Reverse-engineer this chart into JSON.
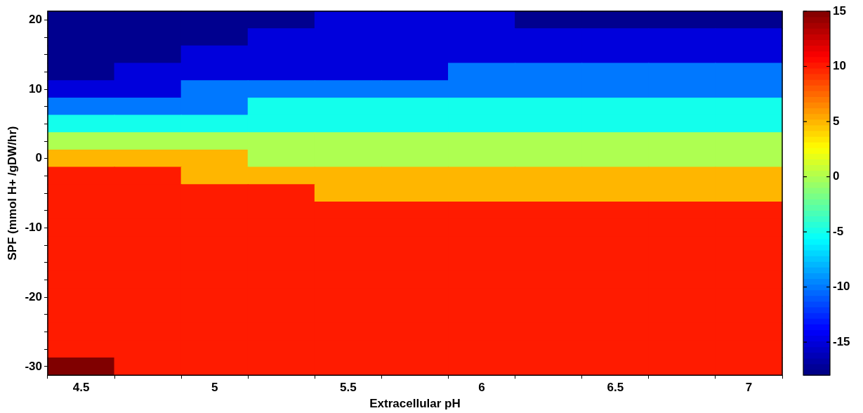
{
  "chart_data": {
    "type": "heatmap",
    "xlabel": "Extracellular pH",
    "ylabel": "SPF (mmol H+ /gDW/hr)",
    "categories": [
      "4.5",
      null,
      "5",
      null,
      "5.5",
      null,
      "6",
      null,
      "6.5",
      null,
      "7"
    ],
    "y_categories": [
      "20",
      null,
      null,
      null,
      "10",
      null,
      null,
      null,
      "0",
      null,
      null,
      null,
      "-10",
      null,
      null,
      null,
      "-20",
      null,
      null,
      null,
      "-30"
    ],
    "cells": [
      [
        -17.5,
        -17.5,
        -17.5,
        -17.5,
        -15,
        -15,
        -15,
        -17.5,
        -17.5,
        -17.5,
        -17.5
      ],
      [
        -17.5,
        -17.5,
        -17.5,
        -15,
        -15,
        -15,
        -15,
        -15,
        -15,
        -15,
        -15
      ],
      [
        -17.5,
        -17.5,
        -15,
        -15,
        -15,
        -15,
        -15,
        -15,
        -15,
        -15,
        -15
      ],
      [
        -17.5,
        -15,
        -15,
        -15,
        -15,
        -15,
        -10,
        -10,
        -10,
        -10,
        -10
      ],
      [
        -15,
        -15,
        -10,
        -10,
        -10,
        -10,
        -10,
        -10,
        -10,
        -10,
        -10
      ],
      [
        -10,
        -10,
        -10,
        -5,
        -5,
        -5,
        -5,
        -5,
        -5,
        -5,
        -5
      ],
      [
        -5,
        -5,
        -5,
        -5,
        -5,
        -5,
        -5,
        -5,
        -5,
        -5,
        -5
      ],
      [
        0,
        0,
        0,
        0,
        0,
        0,
        0,
        0,
        0,
        0,
        0
      ],
      [
        5,
        5,
        5,
        0,
        0,
        0,
        0,
        0,
        0,
        0,
        0
      ],
      [
        10,
        10,
        5,
        5,
        5,
        5,
        5,
        5,
        5,
        5,
        5
      ],
      [
        10,
        10,
        10,
        10,
        5,
        5,
        5,
        5,
        5,
        5,
        5
      ],
      [
        10,
        10,
        10,
        10,
        10,
        10,
        10,
        10,
        10,
        10,
        10
      ],
      [
        10,
        10,
        10,
        10,
        10,
        10,
        10,
        10,
        10,
        10,
        10
      ],
      [
        10,
        10,
        10,
        10,
        10,
        10,
        10,
        10,
        10,
        10,
        10
      ],
      [
        10,
        10,
        10,
        10,
        10,
        10,
        10,
        10,
        10,
        10,
        10
      ],
      [
        10,
        10,
        10,
        10,
        10,
        10,
        10,
        10,
        10,
        10,
        10
      ],
      [
        10,
        10,
        10,
        10,
        10,
        10,
        10,
        10,
        10,
        10,
        10
      ],
      [
        10,
        10,
        10,
        10,
        10,
        10,
        10,
        10,
        10,
        10,
        10
      ],
      [
        10,
        10,
        10,
        10,
        10,
        10,
        10,
        10,
        10,
        10,
        10
      ],
      [
        10,
        10,
        10,
        10,
        10,
        10,
        10,
        10,
        10,
        10,
        10
      ],
      [
        15,
        10,
        10,
        10,
        10,
        10,
        10,
        10,
        10,
        10,
        10
      ]
    ],
    "clim": [
      -18,
      15
    ],
    "cticks": [
      -15,
      -10,
      -5,
      0,
      5,
      10,
      15
    ]
  }
}
